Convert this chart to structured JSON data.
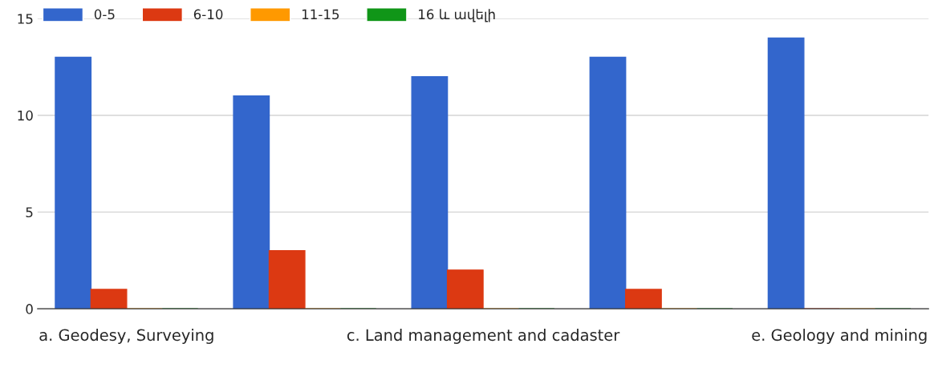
{
  "chart_data": {
    "type": "bar",
    "categories": [
      "a. Geodesy, Surveying",
      null,
      "c. Land management and cadaster",
      null,
      "e. Geology and mining"
    ],
    "series": [
      {
        "name": "0-5",
        "color": "#3366cc",
        "values": [
          13,
          11,
          12,
          13,
          14
        ]
      },
      {
        "name": "6-10",
        "color": "#dc3912",
        "values": [
          1,
          3,
          2,
          1,
          0
        ]
      },
      {
        "name": "11-15",
        "color": "#ff9900",
        "values": [
          0,
          0,
          0,
          0,
          0
        ]
      },
      {
        "name": "16 և ավելի",
        "color": "#109618",
        "values": [
          0,
          0,
          0,
          0,
          0
        ]
      }
    ],
    "ylim": [
      0,
      15
    ],
    "yticks": [
      0,
      5,
      10,
      15
    ],
    "grid": "y",
    "legend": "top left"
  }
}
